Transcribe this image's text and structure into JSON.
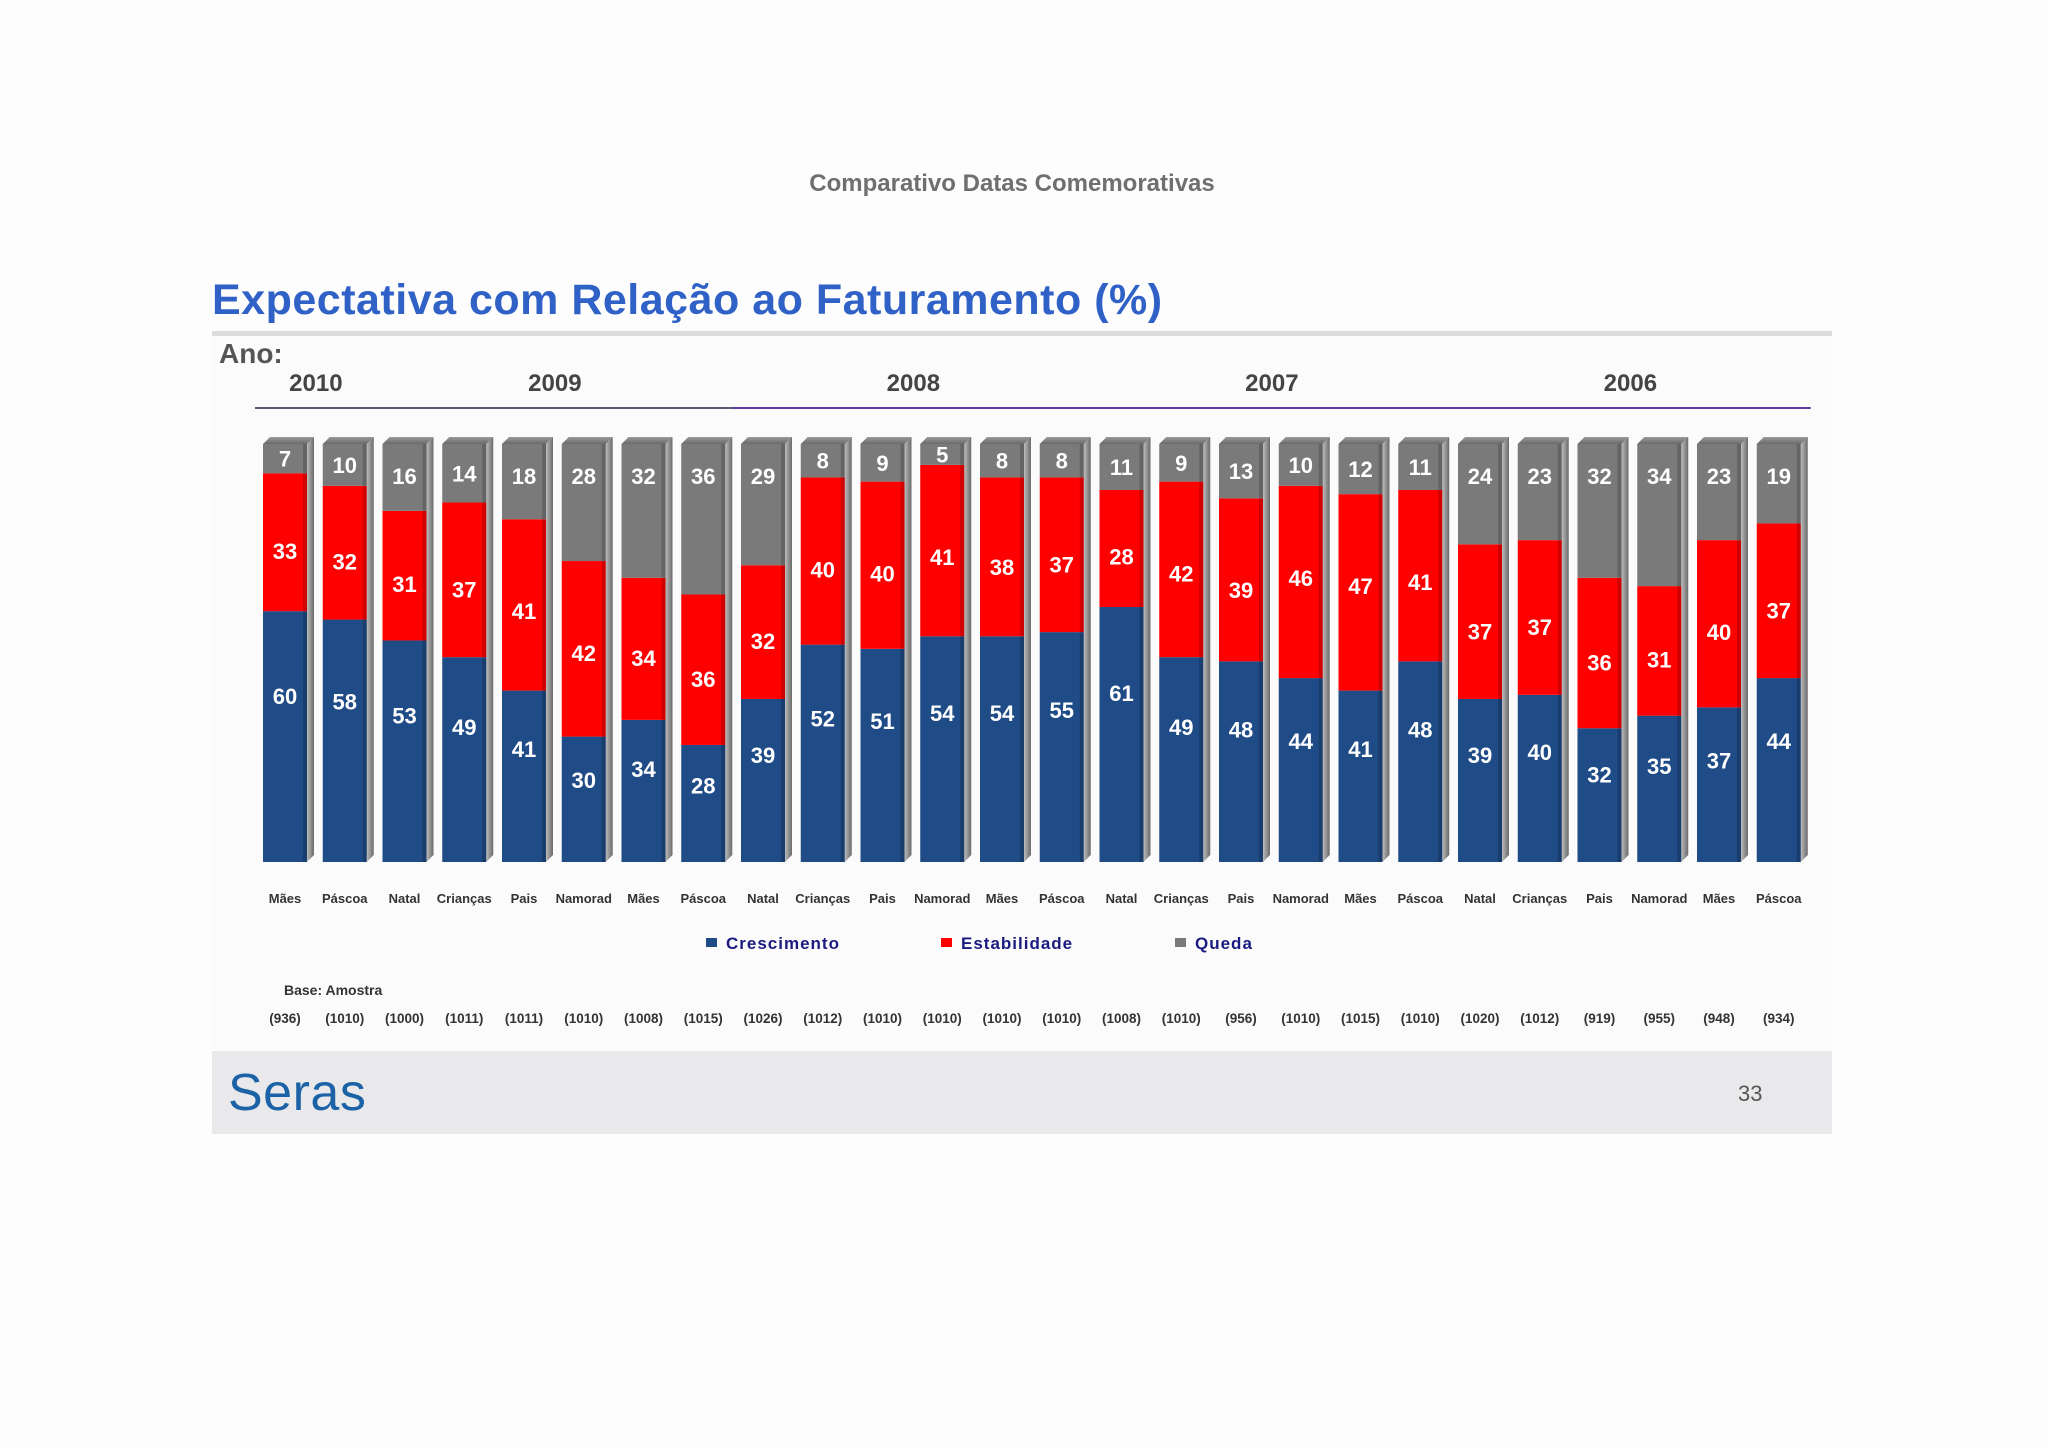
{
  "slide": {
    "header": "Comparativo Datas Comemorativas",
    "title": "Expectativa com Relação ao Faturamento (%)",
    "year_label": "Ano:",
    "brand": "Seras",
    "page_number": "33"
  },
  "colors": {
    "crescimento": "#1f4b86",
    "estabilidade": "#ff0000",
    "queda": "#7a7a7a",
    "year_rule_2010": "#5a5a6a",
    "year_rule_2009": "#5a5a6a",
    "year_rule_other": "#5b3aa5",
    "legend_text": "#1a1a80"
  },
  "chart_data": {
    "type": "bar",
    "stacked": true,
    "percent": true,
    "title": "Expectativa com Relação ao Faturamento (%)",
    "ylim": [
      0,
      100
    ],
    "year_groups": [
      {
        "year": "2010",
        "count": 2
      },
      {
        "year": "2009",
        "count": 6
      },
      {
        "year": "2008",
        "count": 6
      },
      {
        "year": "2007",
        "count": 6
      },
      {
        "year": "2006",
        "count": 6
      }
    ],
    "categories": [
      "Mães",
      "Páscoa",
      "Natal",
      "Crianças",
      "Pais",
      "Namorad",
      "Mães",
      "Páscoa",
      "Natal",
      "Crianças",
      "Pais",
      "Namorad",
      "Mães",
      "Páscoa",
      "Natal",
      "Crianças",
      "Pais",
      "Namorad",
      "Mães",
      "Páscoa",
      "Natal",
      "Crianças",
      "Pais",
      "Namorad",
      "Mães",
      "Páscoa"
    ],
    "series": [
      {
        "name": "Crescimento",
        "values": [
          60,
          58,
          53,
          49,
          41,
          30,
          34,
          28,
          39,
          52,
          51,
          54,
          54,
          55,
          61,
          49,
          48,
          44,
          41,
          48,
          39,
          40,
          32,
          35,
          37,
          44
        ]
      },
      {
        "name": "Estabilidade",
        "values": [
          33,
          32,
          31,
          37,
          41,
          42,
          34,
          36,
          32,
          40,
          40,
          41,
          38,
          37,
          28,
          42,
          39,
          46,
          47,
          41,
          37,
          37,
          36,
          31,
          40,
          37
        ]
      },
      {
        "name": "Queda",
        "values": [
          7,
          10,
          16,
          14,
          18,
          28,
          32,
          36,
          29,
          8,
          9,
          5,
          8,
          8,
          11,
          9,
          13,
          10,
          12,
          11,
          24,
          23,
          32,
          34,
          23,
          19
        ]
      }
    ],
    "legend": [
      "Crescimento",
      "Estabilidade",
      "Queda"
    ],
    "base_label": "Base: Amostra",
    "bases": [
      "(936)",
      "(1010)",
      "(1000)",
      "(1011)",
      "(1011)",
      "(1010)",
      "(1008)",
      "(1015)",
      "(1026)",
      "(1012)",
      "(1010)",
      "(1010)",
      "(1010)",
      "(1010)",
      "(1008)",
      "(1010)",
      "(956)",
      "(1010)",
      "(1015)",
      "(1010)",
      "(1020)",
      "(1012)",
      "(919)",
      "(955)",
      "(948)",
      "(934)"
    ]
  }
}
